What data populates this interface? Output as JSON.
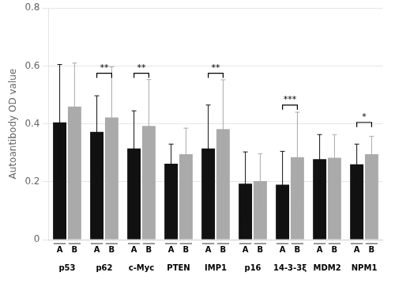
{
  "chart_data": {
    "type": "bar",
    "categories": [
      "p53",
      "p62",
      "c-Myc",
      "PTEN",
      "IMP1",
      "p16",
      "14-3-3ξ",
      "MDM2",
      "NPM1"
    ],
    "series": [
      {
        "name": "A",
        "color": "#111111",
        "values": [
          0.405,
          0.372,
          0.315,
          0.262,
          0.315,
          0.193,
          0.19,
          0.278,
          0.26
        ],
        "errors": [
          0.2,
          0.125,
          0.13,
          0.068,
          0.15,
          0.11,
          0.115,
          0.085,
          0.07
        ]
      },
      {
        "name": "B",
        "color": "#aaaaaa",
        "values": [
          0.46,
          0.422,
          0.393,
          0.295,
          0.382,
          0.202,
          0.285,
          0.283,
          0.295
        ],
        "errors": [
          0.15,
          0.175,
          0.16,
          0.09,
          0.17,
          0.095,
          0.155,
          0.08,
          0.062
        ]
      }
    ],
    "ylabel": "Autoantibody OD value",
    "ylim": [
      0,
      0.8
    ],
    "yticks": [
      0,
      0.2,
      0.4,
      0.6,
      0.8
    ],
    "grid": true,
    "annotations": [
      {
        "category": "p62",
        "y": 0.575,
        "label": "**"
      },
      {
        "category": "c-Myc",
        "y": 0.575,
        "label": "**"
      },
      {
        "category": "IMP1",
        "y": 0.575,
        "label": "**"
      },
      {
        "category": "14-3-3ξ",
        "y": 0.465,
        "label": "***"
      },
      {
        "category": "NPM1",
        "y": 0.405,
        "label": "*"
      }
    ]
  }
}
